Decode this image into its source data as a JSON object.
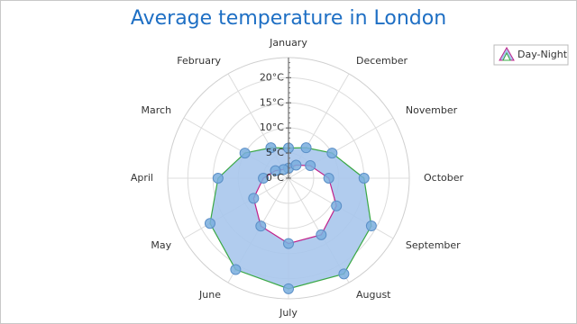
{
  "chart_data": {
    "type": "radar_range",
    "title": "Average temperature in London",
    "categories": [
      "January",
      "February",
      "March",
      "April",
      "May",
      "June",
      "July",
      "August",
      "September",
      "October",
      "November",
      "December"
    ],
    "series": [
      {
        "name": "Day-Night",
        "color": "#a9c7ec",
        "high_color": "#3aa845",
        "low_color": "#c0208a",
        "marker_color": "#7aaede",
        "high": [
          6,
          7,
          10,
          14,
          18,
          21,
          22,
          22,
          19,
          15,
          10,
          7
        ],
        "low": [
          2,
          2,
          3,
          5,
          8,
          11,
          13,
          13,
          11,
          8,
          5,
          3
        ]
      }
    ],
    "ylim": [
      0,
      24
    ],
    "yticks": [
      {
        "value": 0,
        "label": "0°C"
      },
      {
        "value": 5,
        "label": "5°C"
      },
      {
        "value": 10,
        "label": "10°C"
      },
      {
        "value": 15,
        "label": "15°C"
      },
      {
        "value": 20,
        "label": "20°C"
      }
    ],
    "grid": true,
    "legend": "top-right"
  }
}
